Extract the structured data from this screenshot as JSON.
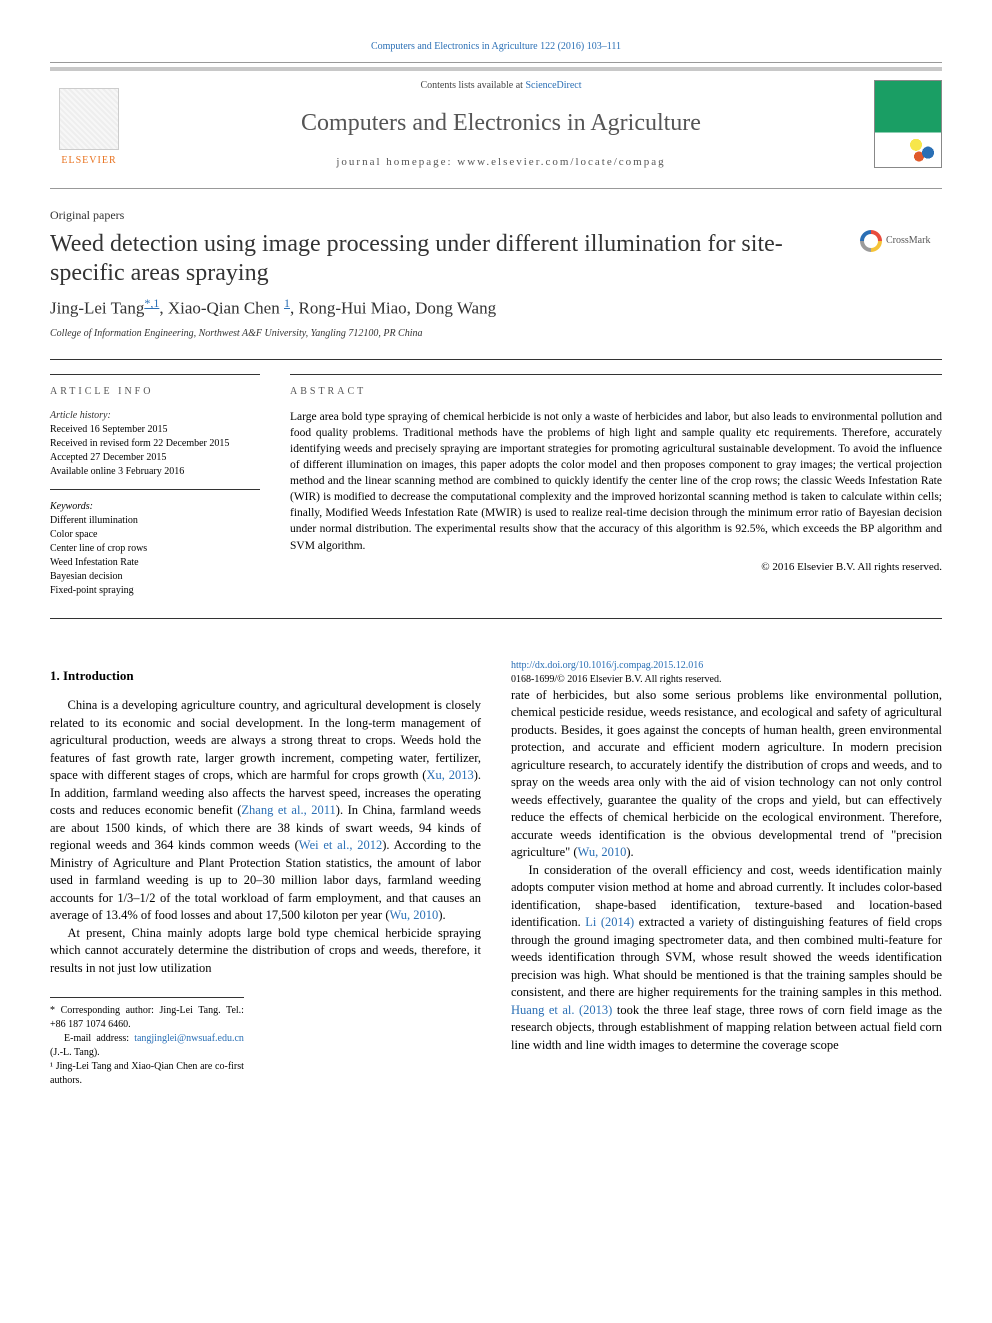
{
  "citation": "Computers and Electronics in Agriculture 122 (2016) 103–111",
  "header": {
    "contents_prefix": "Contents lists available at ",
    "contents_link": "ScienceDirect",
    "journal": "Computers and Electronics in Agriculture",
    "homepage_prefix": "journal homepage: ",
    "homepage": "www.elsevier.com/locate/compag",
    "publisher": "ELSEVIER"
  },
  "article": {
    "section": "Original papers",
    "title": "Weed detection using image processing under different illumination for site-specific areas spraying",
    "crossmark": "CrossMark",
    "authors_html": "Jing-Lei Tang",
    "corr_marks": "*,1",
    "authors_rest": ", Xiao-Qian Chen",
    "corr_mark2": "1",
    "authors_tail": ", Rong-Hui Miao, Dong Wang",
    "affiliation": "College of Information Engineering, Northwest A&F University, Yangling 712100, PR China"
  },
  "info": {
    "header": "article info",
    "history_label": "Article history:",
    "received": "Received 16 September 2015",
    "revised": "Received in revised form 22 December 2015",
    "accepted": "Accepted 27 December 2015",
    "online": "Available online 3 February 2016",
    "keywords_label": "Keywords:",
    "keywords": [
      "Different illumination",
      "Color space",
      "Center line of crop rows",
      "Weed Infestation Rate",
      "Bayesian decision",
      "Fixed-point spraying"
    ]
  },
  "abstract": {
    "header": "abstract",
    "text": "Large area bold type spraying of chemical herbicide is not only a waste of herbicides and labor, but also leads to environmental pollution and food quality problems. Traditional methods have the problems of high light and sample quality etc requirements. Therefore, accurately identifying weeds and precisely spraying are important strategies for promoting agricultural sustainable development. To avoid the influence of different illumination on images, this paper adopts the color model and then proposes component to gray images; the vertical projection method and the linear scanning method are combined to quickly identify the center line of the crop rows; the classic Weeds Infestation Rate (WIR) is modified to decrease the computational complexity and the improved horizontal scanning method is taken to calculate within cells; finally, Modified Weeds Infestation Rate (MWIR) is used to realize real-time decision through the minimum error ratio of Bayesian decision under normal distribution. The experimental results show that the accuracy of this algorithm is 92.5%, which exceeds the BP algorithm and SVM algorithm.",
    "copyright": "© 2016 Elsevier B.V. All rights reserved."
  },
  "body": {
    "h1": "1. Introduction",
    "p1a": "China is a developing agriculture country, and agricultural development is closely related to its economic and social development. In the long-term management of agricultural production, weeds are always a strong threat to crops. Weeds hold the features of fast growth rate, larger growth increment, competing water, fertilizer, space with different stages of crops, which are harmful for crops growth (",
    "p1_link1": "Xu, 2013",
    "p1b": "). In addition, farmland weeding also affects the harvest speed, increases the operating costs and reduces economic benefit (",
    "p1_link2": "Zhang et al., 2011",
    "p1c": "). In China, farmland weeds are about 1500 kinds, of which there are 38 kinds of swart weeds, 94 kinds of regional weeds and 364 kinds common weeds (",
    "p1_link3": "Wei et al., 2012",
    "p1d": "). According to the Ministry of Agriculture and Plant Protection Station statistics, the amount of labor used in farmland weeding is up to 20–30 million labor days, farmland weeding accounts for 1/3–1/2 of the total workload of farm employment, and that causes an average of 13.4% of food losses and about 17,500 kiloton per year (",
    "p1_link4": "Wu, 2010",
    "p1e": ").",
    "p2": "At present, China mainly adopts large bold type chemical herbicide spraying which cannot accurately determine the distribution of crops and weeds, therefore, it results in not just low utilization",
    "p3a": "rate of herbicides, but also some serious problems like environmental pollution, chemical pesticide residue, weeds resistance, and ecological and safety of agricultural products. Besides, it goes against the concepts of human health, green environmental protection, and accurate and efficient modern agriculture. In modern precision agriculture research, to accurately identify the distribution of crops and weeds, and to spray on the weeds area only with the aid of vision technology can not only control weeds effectively, guarantee the quality of the crops and yield, but can effectively reduce the effects of chemical herbicide on the ecological environment. Therefore, accurate weeds identification is the obvious developmental trend of \"precision agriculture\" (",
    "p3_link1": "Wu, 2010",
    "p3b": ").",
    "p4a": "In consideration of the overall efficiency and cost, weeds identification mainly adopts computer vision method at home and abroad currently. It includes color-based identification, shape-based identification, texture-based and location-based identification. ",
    "p4_link1": "Li (2014)",
    "p4b": " extracted a variety of distinguishing features of field crops through the ground imaging spectrometer data, and then combined multi-feature for weeds identification through SVM, whose result showed the weeds identification precision was high. What should be mentioned is that the training samples should be consistent, and there are higher requirements for the training samples in this method. ",
    "p4_link2": "Huang et al. (2013)",
    "p4c": " took the three leaf stage, three rows of corn field image as the research objects, through establishment of mapping relation between actual field corn line width and line width images to determine the coverage scope"
  },
  "footnotes": {
    "corr_label": "* Corresponding author: Jing-Lei Tang. Tel.: +86 187 1074 6460.",
    "email_label": "E-mail address: ",
    "email": "tangjinglei@nwsuaf.edu.cn",
    "email_tail": " (J.-L. Tang).",
    "cofirst": "¹ Jing-Lei Tang and Xiao-Qian Chen are co-first authors."
  },
  "doi": {
    "link": "http://dx.doi.org/10.1016/j.compag.2015.12.016",
    "issn": "0168-1699/© 2016 Elsevier B.V. All rights reserved."
  },
  "colors": {
    "link": "#2a6fb5",
    "publisher": "#e8721f"
  }
}
